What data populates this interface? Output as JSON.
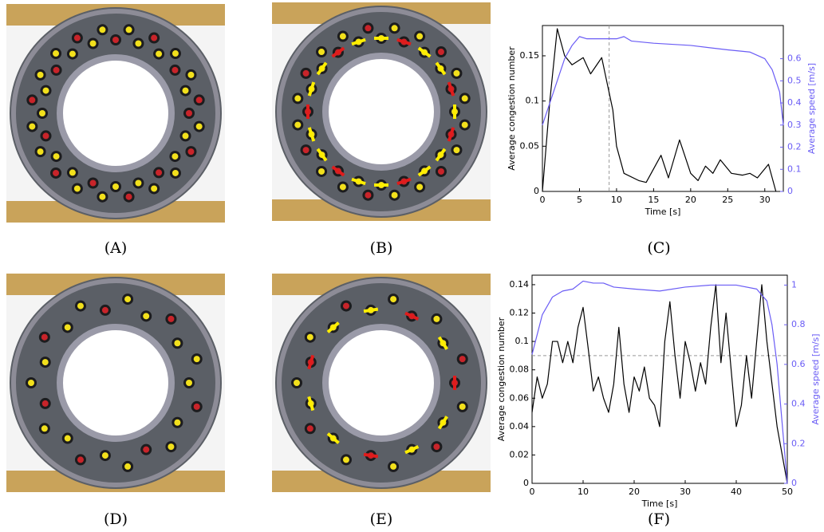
{
  "panel_labels": [
    "(A)",
    "(B)",
    "(C)",
    "(D)",
    "(E)",
    "(F)"
  ],
  "chart_data": [
    {
      "type": "line",
      "xlabel": "Time [s]",
      "ylabel": "Average congestion number",
      "y2label": "Average speed [m/s]",
      "xlim": [
        0,
        32.5
      ],
      "xticks": [
        0,
        5,
        10,
        15,
        20,
        25,
        30
      ],
      "ylim": [
        0,
        0.1835
      ],
      "yticks": [
        0,
        0.05,
        0.1,
        0.15
      ],
      "y2lim": [
        0,
        0.75
      ],
      "y2ticks": [
        0,
        0.1,
        0.2,
        0.3,
        0.4,
        0.5,
        0.6
      ],
      "reference_x": 9,
      "series": [
        {
          "color": "#000000",
          "x": [
            0,
            1,
            2,
            3,
            3.5,
            4,
            5.5,
            6.5,
            8,
            9.5,
            10,
            11,
            13,
            14,
            16,
            17,
            18.5,
            20,
            21,
            22,
            23,
            24,
            25.5,
            27,
            28,
            29,
            30.5,
            31.5
          ],
          "values": [
            0,
            0.1,
            0.18,
            0.15,
            0.145,
            0.14,
            0.148,
            0.13,
            0.148,
            0.09,
            0.05,
            0.02,
            0.012,
            0.01,
            0.04,
            0.015,
            0.057,
            0.02,
            0.012,
            0.028,
            0.02,
            0.035,
            0.02,
            0.018,
            0.02,
            0.015,
            0.03,
            0
          ]
        },
        {
          "color": "#6a5cf5",
          "axis": "y2",
          "x": [
            0,
            1,
            2,
            3,
            4,
            5,
            6,
            8,
            10,
            11,
            12,
            15,
            20,
            25,
            28,
            30,
            31,
            32,
            32.5
          ],
          "values": [
            0.3,
            0.4,
            0.5,
            0.6,
            0.66,
            0.7,
            0.69,
            0.69,
            0.69,
            0.7,
            0.68,
            0.67,
            0.66,
            0.64,
            0.63,
            0.6,
            0.55,
            0.45,
            0.3
          ]
        }
      ]
    },
    {
      "type": "line",
      "xlabel": "Time [s]",
      "ylabel": "Average congestion number",
      "y2label": "Average speed [m/s]",
      "xlim": [
        0,
        50
      ],
      "xticks": [
        0,
        10,
        20,
        30,
        40,
        50
      ],
      "ylim": [
        0,
        0.1467
      ],
      "yticks": [
        0,
        0.02,
        0.04,
        0.06,
        0.08,
        0.1,
        0.12,
        0.14
      ],
      "y2lim": [
        0,
        1.05
      ],
      "y2ticks": [
        0,
        0.2,
        0.4,
        0.6,
        0.8,
        1
      ],
      "reference_y": 0.09,
      "series": [
        {
          "color": "#000000",
          "x": [
            0,
            1,
            2,
            3,
            4,
            5,
            6,
            7,
            8,
            9,
            10,
            11,
            12,
            13,
            14,
            15,
            16,
            17,
            18,
            19,
            20,
            21,
            22,
            23,
            24,
            25,
            26,
            27,
            28,
            29,
            30,
            31,
            32,
            33,
            34,
            35,
            36,
            37,
            38,
            39,
            40,
            41,
            42,
            43,
            44,
            45,
            46,
            47,
            48,
            49,
            50
          ],
          "values": [
            0.05,
            0.075,
            0.06,
            0.07,
            0.1,
            0.1,
            0.085,
            0.1,
            0.085,
            0.11,
            0.124,
            0.095,
            0.065,
            0.075,
            0.06,
            0.05,
            0.07,
            0.11,
            0.07,
            0.05,
            0.075,
            0.065,
            0.082,
            0.06,
            0.055,
            0.04,
            0.1,
            0.128,
            0.09,
            0.06,
            0.1,
            0.085,
            0.065,
            0.085,
            0.07,
            0.11,
            0.14,
            0.085,
            0.12,
            0.08,
            0.04,
            0.055,
            0.09,
            0.06,
            0.1,
            0.14,
            0.1,
            0.07,
            0.04,
            0.02,
            0
          ]
        },
        {
          "color": "#6a5cf5",
          "axis": "y2",
          "x": [
            0,
            2,
            4,
            6,
            8,
            10,
            12,
            14,
            16,
            20,
            25,
            30,
            35,
            40,
            44,
            46,
            47,
            48,
            49,
            50
          ],
          "values": [
            0.65,
            0.85,
            0.94,
            0.97,
            0.98,
            1.02,
            1.01,
            1.01,
            0.99,
            0.98,
            0.97,
            0.99,
            1.0,
            1.0,
            0.98,
            0.92,
            0.8,
            0.6,
            0.3,
            0
          ]
        }
      ]
    }
  ]
}
